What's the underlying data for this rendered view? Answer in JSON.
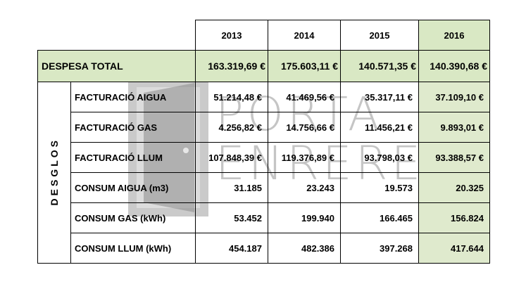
{
  "table": {
    "years": [
      "2013",
      "2014",
      "2015",
      "2016"
    ],
    "total": {
      "label": "DESPESA TOTAL",
      "values": [
        "163.319,69 €",
        "175.603,11 €",
        "140.571,35 €",
        "140.390,68 €"
      ]
    },
    "group_label": "DESGLOS",
    "rows": [
      {
        "label": "FACTURACIÓ AIGUA",
        "values": [
          "51.214,48 €",
          "41.469,56 €",
          "35.317,11 €",
          "37.109,10 €"
        ]
      },
      {
        "label": "FACTURACIÓ GAS",
        "values": [
          "4.256,82 €",
          "14.756,66 €",
          "11.456,21 €",
          "9.893,01 €"
        ]
      },
      {
        "label": "FACTURACIÓ LLUM",
        "values": [
          "107.848,39 €",
          "119.376,89 €",
          "93.798,03 €",
          "93.388,57 €"
        ]
      },
      {
        "label": "CONSUM AIGUA (m3)",
        "values": [
          "31.185",
          "23.243",
          "19.573",
          "20.325"
        ]
      },
      {
        "label": "CONSUM GAS (kWh)",
        "values": [
          "53.452",
          "199.940",
          "166.465",
          "156.824"
        ]
      },
      {
        "label": "CONSUM LLUM (kWh)",
        "values": [
          "454.187",
          "482.386",
          "397.268",
          "417.644"
        ]
      }
    ]
  },
  "watermark": {
    "line1": "PORTA",
    "line2": "ENRERE",
    "color": "#8a8a8a"
  },
  "colors": {
    "header_green": "#d9e8c4",
    "border": "#000000"
  }
}
